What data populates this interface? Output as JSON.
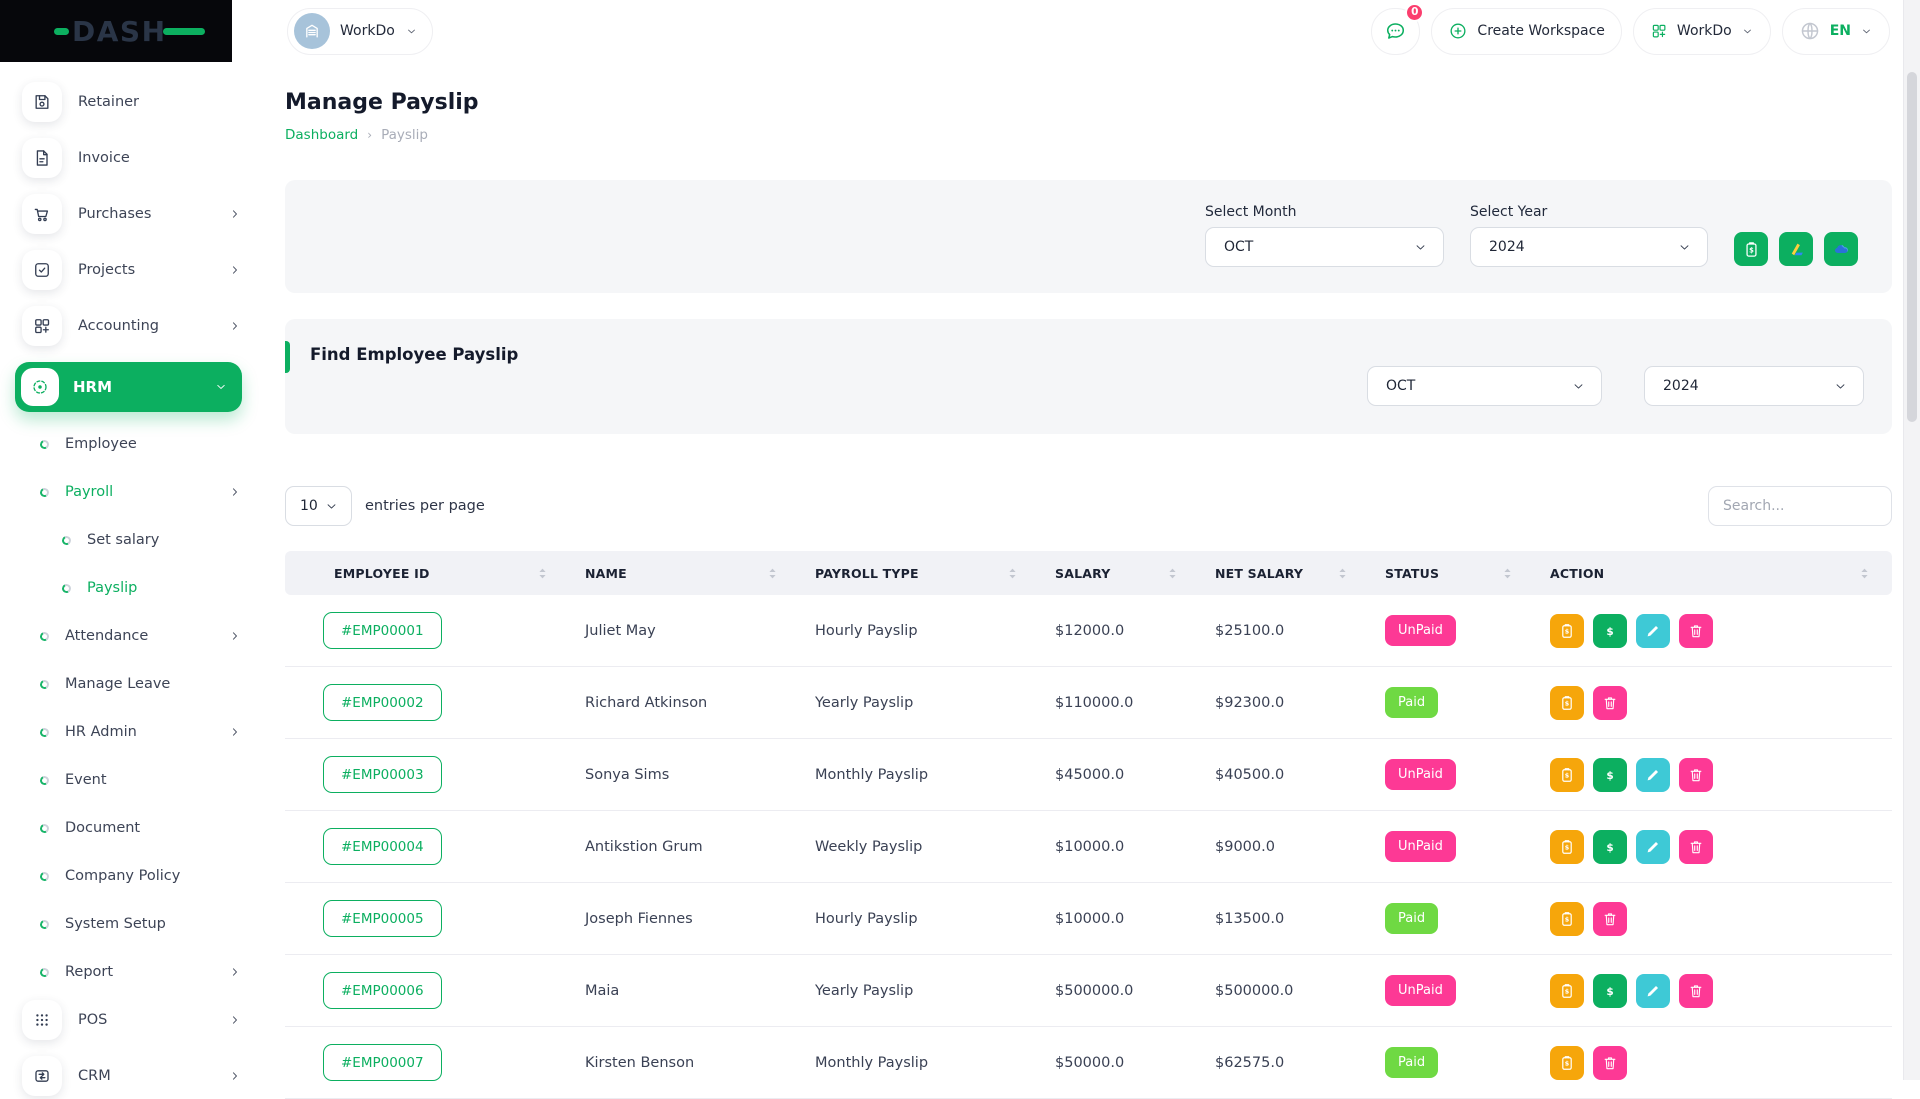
{
  "brand": {
    "name": "DASH"
  },
  "colors": {
    "primary_green": "#0caf60",
    "paid_green": "#6fd943",
    "pink": "#fd3995",
    "orange": "#f6a60b",
    "cyan": "#3ec9d6",
    "avatar_blue": "#a7c3da",
    "sidebar_logo_bg": "#06070b"
  },
  "topbar": {
    "workspace_label": "WorkDo",
    "workspace_icon": "building-icon",
    "messages_badge": "0",
    "create_workspace_label": "Create Workspace",
    "app_switcher_label": "WorkDo",
    "language_label": "EN"
  },
  "sidebar": {
    "items": [
      {
        "label": "Retainer",
        "icon": "floppy",
        "type": "chip"
      },
      {
        "label": "Invoice",
        "icon": "document",
        "type": "chip"
      },
      {
        "label": "Purchases",
        "icon": "cart",
        "type": "chip",
        "chevron": "right"
      },
      {
        "label": "Projects",
        "icon": "check-square",
        "type": "chip",
        "chevron": "right"
      },
      {
        "label": "Accounting",
        "icon": "grid-plus",
        "type": "chip",
        "chevron": "right"
      },
      {
        "label": "HRM",
        "icon": "target",
        "type": "chip",
        "active": true,
        "chevron": "down"
      },
      {
        "label": "Employee",
        "type": "sub"
      },
      {
        "label": "Payroll",
        "type": "sub",
        "active": true,
        "chevron": "right"
      },
      {
        "label": "Set salary",
        "type": "sub2"
      },
      {
        "label": "Payslip",
        "type": "sub2",
        "active": true
      },
      {
        "label": "Attendance",
        "type": "sub",
        "chevron": "right"
      },
      {
        "label": "Manage Leave",
        "type": "sub"
      },
      {
        "label": "HR Admin",
        "type": "sub",
        "chevron": "right"
      },
      {
        "label": "Event",
        "type": "sub"
      },
      {
        "label": "Document",
        "type": "sub"
      },
      {
        "label": "Company Policy",
        "type": "sub"
      },
      {
        "label": "System Setup",
        "type": "sub"
      },
      {
        "label": "Report",
        "type": "sub",
        "chevron": "right"
      },
      {
        "label": "POS",
        "icon": "grid-dots",
        "type": "chip",
        "chevron": "right"
      },
      {
        "label": "CRM",
        "icon": "chat-sync",
        "type": "chip",
        "chevron": "right"
      }
    ]
  },
  "page": {
    "title": "Manage Payslip",
    "breadcrumb": {
      "home": "Dashboard",
      "separator": "›",
      "current": "Payslip"
    }
  },
  "filter_card": {
    "month_label": "Select Month",
    "month_value": "OCT",
    "year_label": "Select Year",
    "year_value": "2024",
    "export_buttons": [
      "clipboard-dollar-icon",
      "google-drive-icon",
      "onedrive-icon"
    ]
  },
  "find_card": {
    "title": "Find Employee Payslip",
    "month_value": "OCT",
    "year_value": "2024"
  },
  "table": {
    "page_size": "10",
    "entries_label": "entries per page",
    "search_placeholder": "Search...",
    "columns": [
      "EMPLOYEE ID",
      "NAME",
      "PAYROLL TYPE",
      "SALARY",
      "NET SALARY",
      "STATUS",
      "ACTION"
    ],
    "rows": [
      {
        "id": "#EMP00001",
        "name": "Juliet May",
        "type": "Hourly Payslip",
        "salary": "$12000.0",
        "net": "$25100.0",
        "status": "UnPaid",
        "actions": [
          "invoice",
          "pay",
          "edit",
          "delete"
        ]
      },
      {
        "id": "#EMP00002",
        "name": "Richard Atkinson",
        "type": "Yearly Payslip",
        "salary": "$110000.0",
        "net": "$92300.0",
        "status": "Paid",
        "actions": [
          "invoice",
          "delete"
        ]
      },
      {
        "id": "#EMP00003",
        "name": "Sonya Sims",
        "type": "Monthly Payslip",
        "salary": "$45000.0",
        "net": "$40500.0",
        "status": "UnPaid",
        "actions": [
          "invoice",
          "pay",
          "edit",
          "delete"
        ]
      },
      {
        "id": "#EMP00004",
        "name": "Antikstion Grum",
        "type": "Weekly Payslip",
        "salary": "$10000.0",
        "net": "$9000.0",
        "status": "UnPaid",
        "actions": [
          "invoice",
          "pay",
          "edit",
          "delete"
        ]
      },
      {
        "id": "#EMP00005",
        "name": "Joseph Fiennes",
        "type": "Hourly Payslip",
        "salary": "$10000.0",
        "net": "$13500.0",
        "status": "Paid",
        "actions": [
          "invoice",
          "delete"
        ]
      },
      {
        "id": "#EMP00006",
        "name": "Maia",
        "type": "Yearly Payslip",
        "salary": "$500000.0",
        "net": "$500000.0",
        "status": "UnPaid",
        "actions": [
          "invoice",
          "pay",
          "edit",
          "delete"
        ]
      },
      {
        "id": "#EMP00007",
        "name": "Kirsten Benson",
        "type": "Monthly Payslip",
        "salary": "$50000.0",
        "net": "$62575.0",
        "status": "Paid",
        "actions": [
          "invoice",
          "delete"
        ]
      }
    ]
  }
}
